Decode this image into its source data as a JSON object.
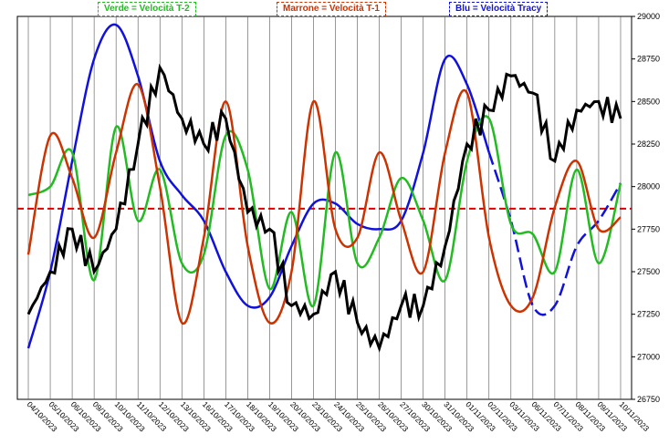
{
  "chart_data": {
    "type": "line",
    "title": "",
    "xlabel": "",
    "ylabel": "",
    "ylim": [
      26750,
      29000
    ],
    "yticks": [
      26750,
      27000,
      27250,
      27500,
      27750,
      28000,
      28250,
      28500,
      28750,
      29000
    ],
    "categories": [
      "04/10/2023",
      "05/10/2023",
      "06/10/2023",
      "09/10/2023",
      "10/10/2023",
      "11/10/2023",
      "12/10/2023",
      "13/10/2023",
      "16/10/2023",
      "17/10/2023",
      "18/10/2023",
      "19/10/2023",
      "20/10/2023",
      "23/10/2023",
      "24/10/2023",
      "25/10/2023",
      "26/10/2023",
      "27/10/2023",
      "30/10/2023",
      "31/10/2023",
      "01/11/2023",
      "02/11/2023",
      "03/11/2023",
      "06/11/2023",
      "07/11/2023",
      "08/11/2023",
      "09/11/2023",
      "10/11/2023"
    ],
    "reference_line": {
      "value": 27870,
      "color": "#dd0000",
      "style": "dashed"
    },
    "legend": [
      {
        "label": "Verde = Velocità T-2",
        "color": "#22bb22"
      },
      {
        "label": "Marrone = Velocità T-1",
        "color": "#cc3300"
      },
      {
        "label": "Blu = Velocità Tracy",
        "color": "#1111dd"
      }
    ],
    "series": [
      {
        "name": "Blu = Velocità Tracy",
        "color": "#1111dd",
        "dash_from_index": 21,
        "values": [
          27050,
          27500,
          28150,
          28750,
          28950,
          28650,
          28150,
          27950,
          27800,
          27500,
          27300,
          27350,
          27650,
          27900,
          27900,
          27780,
          27750,
          27800,
          28200,
          28750,
          28600,
          28200,
          27800,
          27300,
          27300,
          27650,
          27800,
          28020
        ]
      },
      {
        "name": "Verde = Velocità T-2",
        "color": "#22bb22",
        "values": [
          27950,
          28000,
          28200,
          27450,
          28350,
          27800,
          28100,
          27550,
          27600,
          28300,
          28100,
          27400,
          27850,
          27300,
          28200,
          27550,
          27700,
          28050,
          27800,
          27450,
          28150,
          28400,
          27780,
          27720,
          27500,
          28100,
          27550,
          28020
        ]
      },
      {
        "name": "Marrone = Velocità T-1",
        "color": "#cc3300",
        "values": [
          27600,
          28300,
          28050,
          27700,
          28200,
          28600,
          28000,
          27200,
          27700,
          28500,
          27650,
          27200,
          27500,
          28500,
          27750,
          27700,
          28200,
          27800,
          27500,
          28200,
          28550,
          27700,
          27300,
          27350,
          27880,
          28150,
          27750,
          27820
        ]
      },
      {
        "name": "",
        "color": "#000000",
        "values": [
          27250,
          27500,
          27750,
          27500,
          27750,
          28250,
          28700,
          28400,
          28250,
          28400,
          27850,
          27750,
          27300,
          27250,
          27500,
          27200,
          27050,
          27300,
          27300,
          27650,
          28250,
          28450,
          28650,
          28550,
          28150,
          28450,
          28500,
          28400
        ]
      }
    ]
  }
}
